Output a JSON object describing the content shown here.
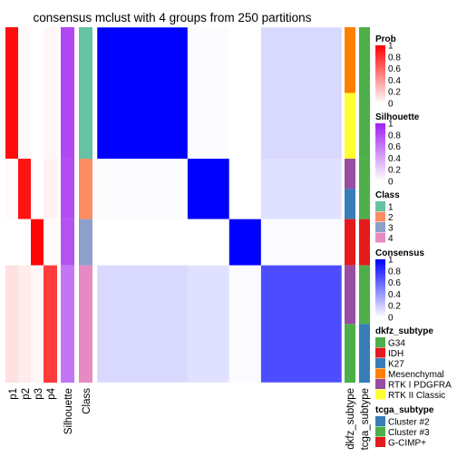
{
  "chart_data": {
    "type": "heatmap",
    "title": "consensus mclust with 4 groups from 250 partitions",
    "bottom_labels": [
      "p1",
      "p2",
      "p3",
      "p4",
      "Silhouette",
      "Class"
    ],
    "right_annotation_labels": [
      "dkfz_subtype",
      "tcga_subtype"
    ],
    "class_groups": [
      {
        "class": "1",
        "fraction": 0.37,
        "color": "#66C2A5"
      },
      {
        "class": "2",
        "fraction": 0.17,
        "color": "#FC8D62"
      },
      {
        "class": "3",
        "fraction": 0.13,
        "color": "#8DA0CB"
      },
      {
        "class": "4",
        "fraction": 0.33,
        "color": "#E78AC3"
      }
    ],
    "consensus_matrix": [
      [
        1.0,
        0.01,
        0.0,
        0.15
      ],
      [
        0.01,
        1.0,
        0.0,
        0.12
      ],
      [
        0.0,
        0.0,
        1.0,
        0.02
      ],
      [
        0.15,
        0.12,
        0.02,
        0.7
      ]
    ],
    "membership_prob": [
      [
        0.95,
        0.02,
        0.0,
        0.03
      ],
      [
        0.02,
        0.93,
        0.0,
        0.05
      ],
      [
        0.0,
        0.0,
        0.98,
        0.02
      ],
      [
        0.12,
        0.08,
        0.03,
        0.77
      ]
    ],
    "silhouette_by_class": [
      0.82,
      0.8,
      0.78,
      0.62
    ],
    "legends": [
      {
        "title": "Prob",
        "ticks": [
          "1",
          "0.8",
          "0.6",
          "0.4",
          "0.2",
          "0"
        ],
        "low_color": "#FFFFFF",
        "high_color": "#FF0000"
      },
      {
        "title": "Silhouette",
        "ticks": [
          "1",
          "0.8",
          "0.6",
          "0.4",
          "0.2",
          "0"
        ],
        "low_color": "#FFFFFF",
        "high_color": "#A020F0"
      },
      {
        "title": "Class",
        "items": [
          {
            "label": "1",
            "color": "#66C2A5"
          },
          {
            "label": "2",
            "color": "#FC8D62"
          },
          {
            "label": "3",
            "color": "#8DA0CB"
          },
          {
            "label": "4",
            "color": "#E78AC3"
          }
        ]
      },
      {
        "title": "Consensus",
        "ticks": [
          "1",
          "0.8",
          "0.6",
          "0.4",
          "0.2",
          "0"
        ],
        "low_color": "#FFFFFF",
        "high_color": "#0000FF"
      },
      {
        "title": "dkfz_subtype",
        "items": [
          {
            "label": "G34",
            "color": "#4DAF4A"
          },
          {
            "label": "IDH",
            "color": "#E41A1C"
          },
          {
            "label": "K27",
            "color": "#377EB8"
          },
          {
            "label": "Mesenchymal",
            "color": "#FF7F00"
          },
          {
            "label": "RTK I PDGFRA",
            "color": "#984EA3"
          },
          {
            "label": "RTK II Classic",
            "color": "#FFFF33"
          }
        ]
      },
      {
        "title": "tcga_subtype",
        "items": [
          {
            "label": "Cluster #2",
            "color": "#377EB8"
          },
          {
            "label": "Cluster #3",
            "color": "#4DAF4A"
          },
          {
            "label": "G-CIMP+",
            "color": "#E41A1C"
          }
        ]
      }
    ]
  }
}
